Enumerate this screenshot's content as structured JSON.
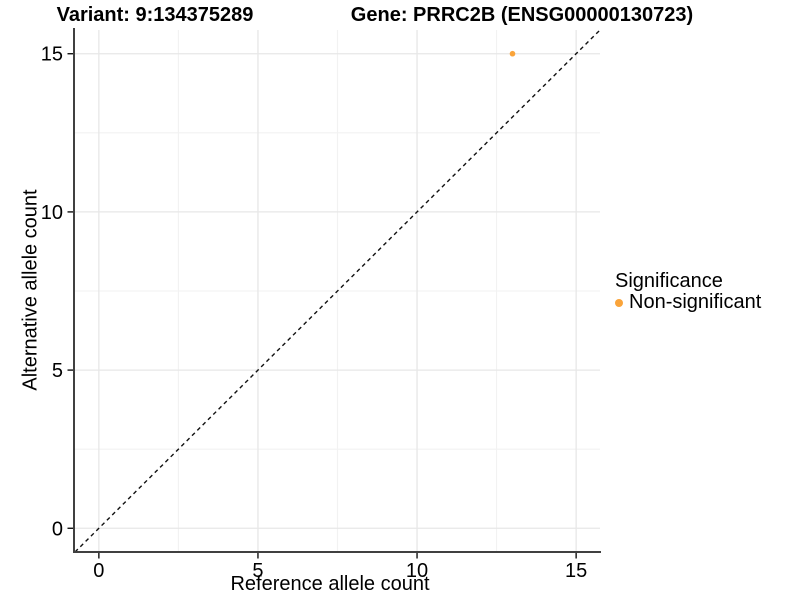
{
  "figure": {
    "background": "#ffffff"
  },
  "titles": {
    "left": "Variant: 9:134375289",
    "right": "Gene: PRRC2B (ENSG00000130723)"
  },
  "chart_data": {
    "type": "scatter",
    "xlabel": "Reference allele count",
    "ylabel": "Alternative allele count",
    "xticks": [
      0,
      5,
      10,
      15
    ],
    "yticks": [
      0,
      5,
      10,
      15
    ],
    "minor_breaks": [
      2.5,
      7.5,
      12.5
    ],
    "xlim": [
      -0.75,
      15.75
    ],
    "ylim": [
      -0.75,
      15.75
    ],
    "grid": "major+minor",
    "points": [
      {
        "x": 13,
        "y": 15,
        "series": "Non-significant",
        "color": "#FAA43A"
      }
    ],
    "identity_line": {
      "note": "y = x",
      "style": "dashed",
      "color": "#111111"
    },
    "legend": {
      "title": "Significance",
      "position": "right",
      "entries": [
        {
          "label": "Non-significant",
          "color": "#FAA43A"
        }
      ]
    },
    "colors": {
      "point": "#FAA43A",
      "grid_major": "#e7e7e7",
      "grid_minor": "#f2f2f2",
      "axis_line": "#404040",
      "tick": "#111111",
      "text": "#000000"
    }
  }
}
